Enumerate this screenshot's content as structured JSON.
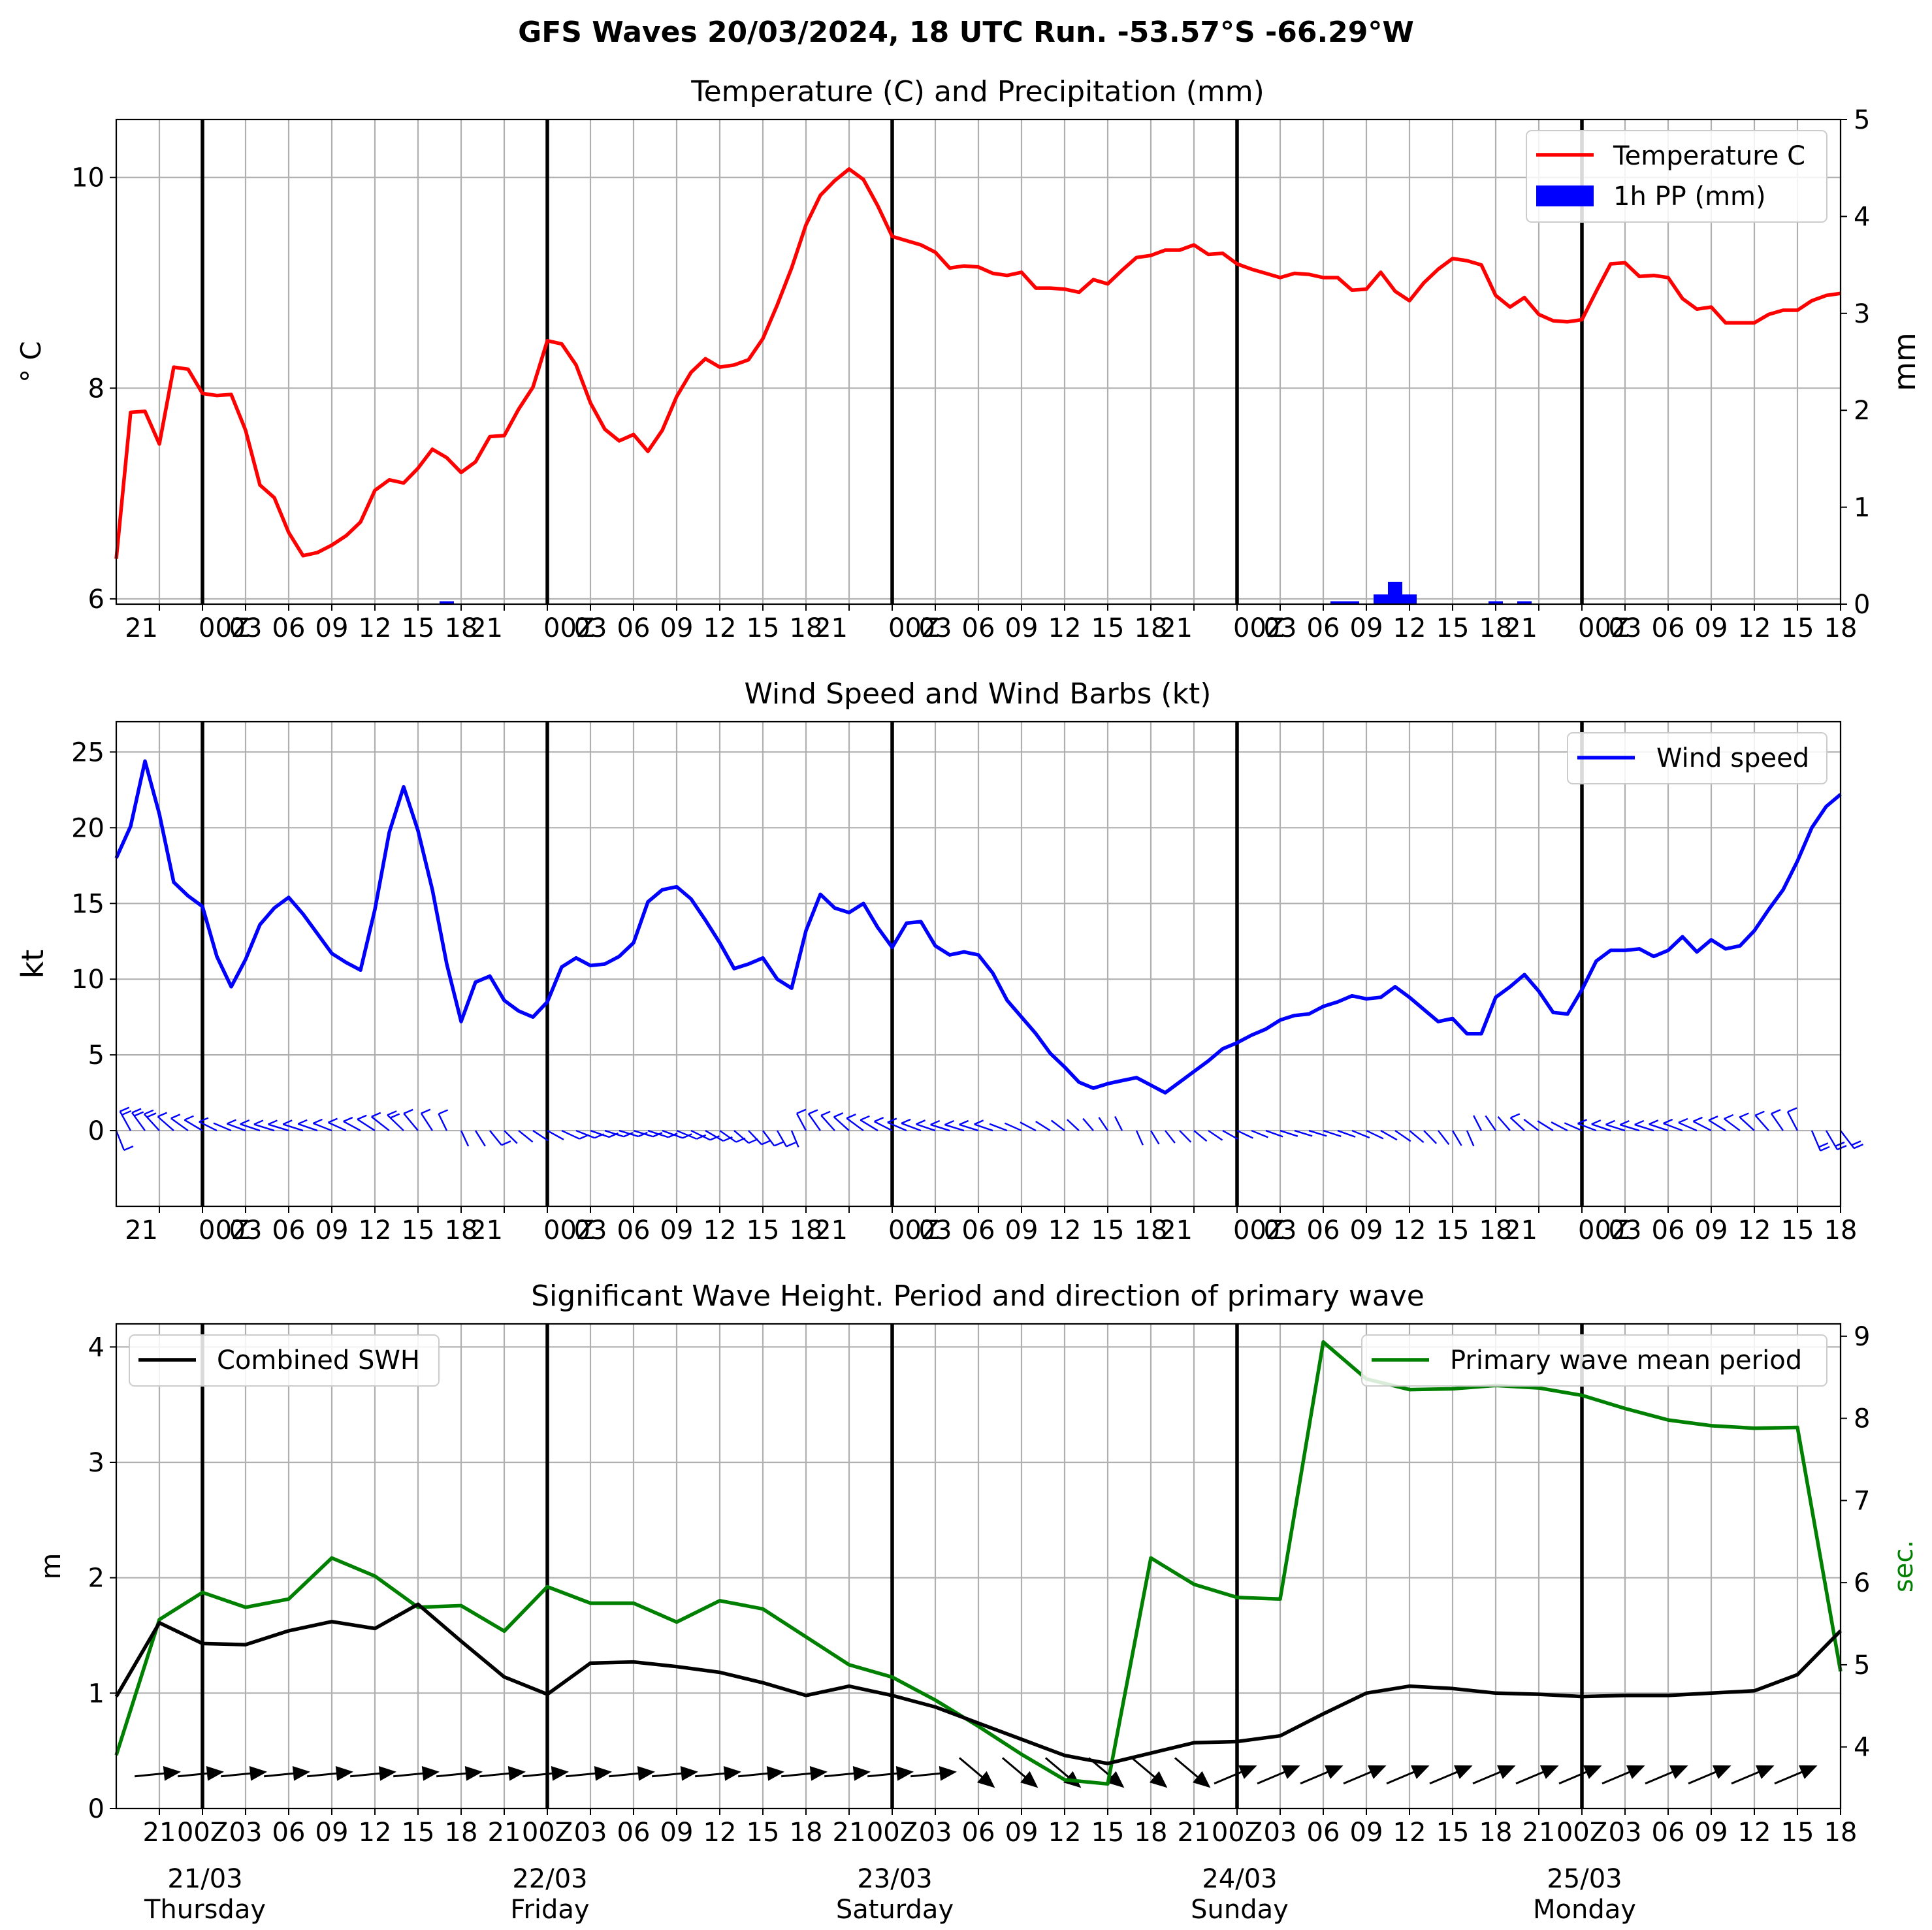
{
  "suptitle": "GFS Waves 20/03/2024, 18 UTC Run. -53.57°S -66.29°W",
  "x_tick_labels": [
    "21",
    "00Z",
    "03",
    "06",
    "09",
    "12",
    "15",
    "18",
    "21",
    "00Z",
    "03",
    "06",
    "09",
    "12",
    "15",
    "18",
    "21",
    "00Z",
    "03",
    "06",
    "09",
    "12",
    "15",
    "18",
    "21",
    "00Z",
    "03",
    "06",
    "09",
    "12",
    "15",
    "18",
    "21",
    "00Z",
    "03",
    "06",
    "09",
    "12",
    "15",
    "18"
  ],
  "x_tick_hours": [
    3,
    6,
    9,
    12,
    15,
    18,
    21,
    24,
    27,
    30,
    33,
    36,
    39,
    42,
    45,
    48,
    51,
    54,
    57,
    60,
    63,
    66,
    69,
    72,
    75,
    78,
    81,
    84,
    87,
    90,
    93,
    96,
    99,
    102,
    105,
    108,
    111,
    114,
    117,
    120
  ],
  "day_labels": [
    {
      "hour": 6,
      "date": "21/03",
      "weekday": "Thursday"
    },
    {
      "hour": 30,
      "date": "22/03",
      "weekday": "Friday"
    },
    {
      "hour": 54,
      "date": "23/03",
      "weekday": "Saturday"
    },
    {
      "hour": 78,
      "date": "24/03",
      "weekday": "Sunday"
    },
    {
      "hour": 102,
      "date": "25/03",
      "weekday": "Monday"
    }
  ],
  "colors": {
    "temperature": "#ff0000",
    "precip": "#0000ff",
    "wind": "#0000ff",
    "swh": "#000000",
    "period": "#008000",
    "grid": "#b0b0b0",
    "day_line": "#000000"
  },
  "chart_data": [
    {
      "type": "line",
      "title": "Temperature (C) and Precipitation (mm)",
      "xlabel": "",
      "ylabel": "° C",
      "ylabel_right": "mm",
      "xlim": [
        0,
        120
      ],
      "ylim": [
        5.95,
        10.55
      ],
      "yticks": [
        6,
        8,
        10
      ],
      "ylim_right": [
        0,
        5
      ],
      "yticks_right": [
        0,
        1,
        2,
        3,
        4,
        5
      ],
      "grid": true,
      "legend": "upper right",
      "series": [
        {
          "name": "Temperature C",
          "axis": "left",
          "color": "#ff0000",
          "x": [
            0,
            1,
            2,
            3,
            4,
            5,
            6,
            7,
            8,
            9,
            10,
            11,
            12,
            13,
            14,
            15,
            16,
            17,
            18,
            19,
            20,
            21,
            22,
            23,
            24,
            25,
            26,
            27,
            28,
            29,
            30,
            31,
            32,
            33,
            34,
            35,
            36,
            37,
            38,
            39,
            40,
            41,
            42,
            43,
            44,
            45,
            46,
            47,
            48,
            49,
            50,
            51,
            52,
            53,
            54,
            55,
            56,
            57,
            58,
            59,
            60,
            61,
            62,
            63,
            64,
            65,
            66,
            67,
            68,
            69,
            70,
            71,
            72,
            73,
            74,
            75,
            76,
            77,
            78,
            79,
            80,
            81,
            82,
            83,
            84,
            85,
            86,
            87,
            88,
            89,
            90,
            91,
            92,
            93,
            94,
            95,
            96,
            97,
            98,
            99,
            100,
            101,
            102,
            103,
            104,
            105,
            106,
            107,
            108,
            109,
            110,
            111,
            112,
            113,
            114,
            115,
            116,
            117,
            118,
            119,
            120
          ],
          "y": [
            6.38,
            7.77,
            7.78,
            7.47,
            8.2,
            8.18,
            7.95,
            7.93,
            7.94,
            7.6,
            7.08,
            6.96,
            6.63,
            6.41,
            6.44,
            6.51,
            6.6,
            6.73,
            7.03,
            7.13,
            7.1,
            7.24,
            7.42,
            7.34,
            7.2,
            7.3,
            7.54,
            7.55,
            7.8,
            8.01,
            8.45,
            8.42,
            8.22,
            7.86,
            7.61,
            7.5,
            7.56,
            7.4,
            7.6,
            7.92,
            8.15,
            8.28,
            8.2,
            8.22,
            8.27,
            8.47,
            8.79,
            9.14,
            9.55,
            9.83,
            9.97,
            10.08,
            9.98,
            9.73,
            9.44,
            9.4,
            9.36,
            9.29,
            9.14,
            9.16,
            9.15,
            9.09,
            9.07,
            9.1,
            8.95,
            8.95,
            8.94,
            8.91,
            9.03,
            8.99,
            9.12,
            9.24,
            9.26,
            9.31,
            9.31,
            9.36,
            9.27,
            9.28,
            9.18,
            9.13,
            9.09,
            9.05,
            9.09,
            9.08,
            9.05,
            9.05,
            8.93,
            8.94,
            9.1,
            8.92,
            8.83,
            9.0,
            9.13,
            9.23,
            9.21,
            9.17,
            8.88,
            8.77,
            8.86,
            8.7,
            8.64,
            8.63,
            8.65,
            8.92,
            9.18,
            9.19,
            9.06,
            9.07,
            9.05,
            8.85,
            8.75,
            8.77,
            8.62,
            8.62,
            8.62,
            8.7,
            8.74,
            8.74,
            8.83,
            8.88,
            8.9
          ]
        },
        {
          "name": "1h PP (mm)",
          "axis": "right",
          "kind": "bar",
          "color": "#0000ff",
          "x": [
            23,
            85,
            86,
            88,
            89,
            90,
            96,
            98
          ],
          "y": [
            0.03,
            0.03,
            0.03,
            0.1,
            0.23,
            0.1,
            0.03,
            0.03
          ]
        }
      ]
    },
    {
      "type": "line",
      "title": "Wind Speed and Wind Barbs (kt)",
      "xlabel": "",
      "ylabel": "kt",
      "xlim": [
        0,
        120
      ],
      "ylim": [
        -5,
        27
      ],
      "yticks": [
        0,
        5,
        10,
        15,
        20,
        25
      ],
      "grid": true,
      "legend": "upper right",
      "series": [
        {
          "name": "Wind speed",
          "color": "#0000ff",
          "x": [
            0,
            1,
            2,
            3,
            4,
            5,
            6,
            7,
            8,
            9,
            10,
            11,
            12,
            13,
            14,
            15,
            16,
            17,
            18,
            19,
            20,
            21,
            22,
            23,
            24,
            25,
            26,
            27,
            28,
            29,
            30,
            31,
            32,
            33,
            34,
            35,
            36,
            37,
            38,
            39,
            40,
            41,
            42,
            43,
            44,
            45,
            46,
            47,
            48,
            49,
            50,
            51,
            52,
            53,
            54,
            55,
            56,
            57,
            58,
            59,
            60,
            61,
            62,
            63,
            64,
            65,
            66,
            67,
            68,
            69,
            70,
            71,
            72,
            73,
            74,
            75,
            76,
            77,
            78,
            79,
            80,
            81,
            82,
            83,
            84,
            85,
            86,
            87,
            88,
            89,
            90,
            91,
            92,
            93,
            94,
            95,
            96,
            97,
            98,
            99,
            100,
            101,
            102,
            103,
            104,
            105,
            106,
            107,
            108,
            109,
            110,
            111,
            112,
            113,
            114,
            115,
            116,
            117,
            118,
            119,
            120
          ],
          "y": [
            18.0,
            20.1,
            24.4,
            20.9,
            16.4,
            15.5,
            14.8,
            11.5,
            9.5,
            11.3,
            13.6,
            14.7,
            15.4,
            14.3,
            13.0,
            11.7,
            11.1,
            10.6,
            14.6,
            19.7,
            22.7,
            19.8,
            15.9,
            11.0,
            7.2,
            9.8,
            10.2,
            8.6,
            7.9,
            7.5,
            8.5,
            10.8,
            11.4,
            10.9,
            11.0,
            11.5,
            12.4,
            15.1,
            15.9,
            16.1,
            15.3,
            13.9,
            12.4,
            10.7,
            11.0,
            11.4,
            10.0,
            9.4,
            13.2,
            15.6,
            14.7,
            14.4,
            15.0,
            13.4,
            12.1,
            13.7,
            13.8,
            12.2,
            11.6,
            11.8,
            11.6,
            10.4,
            8.6,
            7.5,
            6.4,
            5.1,
            4.2,
            3.2,
            2.8,
            3.1,
            3.3,
            3.5,
            3.0,
            2.5,
            3.2,
            3.9,
            4.6,
            5.4,
            5.8,
            6.3,
            6.7,
            7.3,
            7.6,
            7.7,
            8.2,
            8.5,
            8.9,
            8.7,
            8.8,
            9.5,
            8.8,
            8.0,
            7.2,
            7.4,
            6.4,
            6.4,
            8.8,
            9.5,
            10.3,
            9.2,
            7.8,
            7.7,
            9.3,
            11.2,
            11.9,
            11.9,
            12.0,
            11.5,
            11.9,
            12.8,
            11.8,
            12.6,
            12.0,
            12.2,
            13.2,
            14.6,
            15.9,
            17.8,
            20.0,
            21.4,
            22.2
          ]
        }
      ]
    },
    {
      "type": "line",
      "title": "Significant Wave Height. Period and direction of primary wave",
      "xlabel": "",
      "ylabel": "m",
      "ylabel_right": "sec.",
      "xlim": [
        0,
        120
      ],
      "ylim": [
        0,
        4.2
      ],
      "yticks": [
        0,
        1,
        2,
        3,
        4
      ],
      "ylim_right": [
        3.25,
        9.15
      ],
      "yticks_right": [
        4,
        5,
        6,
        7,
        8,
        9
      ],
      "grid": true,
      "legend_left": "upper left",
      "legend_right": "upper right",
      "series": [
        {
          "name": "Combined SWH",
          "axis": "left",
          "color": "#000000",
          "x": [
            0,
            3,
            6,
            9,
            12,
            15,
            18,
            21,
            24,
            27,
            30,
            33,
            36,
            39,
            42,
            45,
            48,
            51,
            54,
            57,
            60,
            63,
            66,
            69,
            72,
            75,
            78,
            81,
            84,
            87,
            90,
            93,
            96,
            99,
            102,
            105,
            108,
            111,
            114,
            117,
            120
          ],
          "y": [
            0.97,
            1.61,
            1.43,
            1.42,
            1.54,
            1.62,
            1.56,
            1.77,
            1.45,
            1.14,
            0.99,
            1.26,
            1.27,
            1.23,
            1.18,
            1.09,
            0.98,
            1.06,
            0.98,
            0.88,
            0.74,
            0.6,
            0.46,
            0.39,
            0.48,
            0.57,
            0.58,
            0.63,
            0.82,
            1.0,
            1.06,
            1.04,
            1.0,
            0.99,
            0.97,
            0.98,
            0.98,
            1.0,
            1.02,
            1.16,
            1.54
          ]
        },
        {
          "name": "Primary wave mean period",
          "axis": "right",
          "color": "#008000",
          "x": [
            0,
            3,
            6,
            9,
            12,
            15,
            18,
            21,
            24,
            27,
            30,
            33,
            36,
            39,
            42,
            45,
            48,
            51,
            54,
            57,
            60,
            63,
            66,
            69,
            72,
            75,
            78,
            81,
            84,
            87,
            90,
            93,
            96,
            99,
            102,
            105,
            108,
            111,
            114,
            117,
            120
          ],
          "y": [
            3.9,
            5.55,
            5.88,
            5.7,
            5.8,
            6.3,
            6.08,
            5.7,
            5.72,
            5.41,
            5.95,
            5.75,
            5.75,
            5.52,
            5.78,
            5.68,
            5.34,
            5.0,
            4.85,
            4.57,
            4.25,
            3.91,
            3.6,
            3.55,
            6.3,
            5.98,
            5.82,
            5.8,
            8.93,
            8.48,
            8.35,
            8.36,
            8.4,
            8.37,
            8.28,
            8.12,
            7.98,
            7.91,
            7.88,
            7.89,
            4.92
          ]
        }
      ]
    }
  ]
}
